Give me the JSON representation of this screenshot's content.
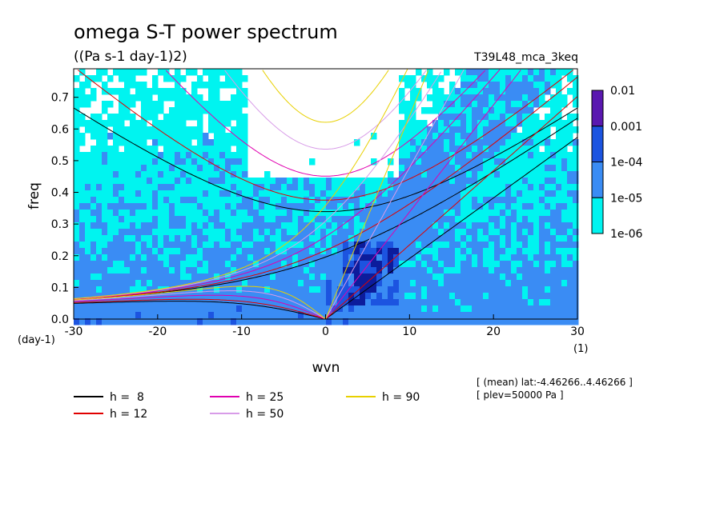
{
  "chart_data": {
    "type": "heatmap",
    "title": "omega S-T power spectrum",
    "subtitle": "((Pa s-1 day-1)2)",
    "run_label": "T39L48_mca_3keq",
    "xlabel": "wvn",
    "ylabel": "freq",
    "x_unit": "(1)",
    "y_unit": "(day-1)",
    "xlim": [
      -30,
      30
    ],
    "ylim": [
      0,
      0.79
    ],
    "xticks": [
      -30,
      -20,
      -10,
      0,
      10,
      20,
      30
    ],
    "yticks": [
      0.0,
      0.1,
      0.2,
      0.3,
      0.4,
      0.5,
      0.6,
      0.7
    ],
    "xtick_labels": [
      "-30",
      "-20",
      "-10",
      "0",
      "10",
      "20",
      "30"
    ],
    "ytick_labels": [
      "0.0",
      "0.1",
      "0.2",
      "0.3",
      "0.4",
      "0.5",
      "0.6",
      "0.7"
    ],
    "colorbar": {
      "levels": [
        "0.01",
        "0.001",
        "1e-04",
        "1e-05",
        "1e-06"
      ],
      "colors": [
        "#5a18b0",
        "#0c1c9c",
        "#1c54e0",
        "#3a8cf4",
        "#00f4f0"
      ]
    },
    "background_level_color": "#ffffff",
    "legend": [
      {
        "label": "h =  8",
        "h": 8,
        "color": "#000000"
      },
      {
        "label": "h = 12",
        "h": 12,
        "color": "#e00000"
      },
      {
        "label": "h = 25",
        "h": 25,
        "color": "#e000b0"
      },
      {
        "label": "h = 50",
        "h": 50,
        "color": "#d89ce8"
      },
      {
        "label": "h = 90",
        "h": 90,
        "color": "#e8d000"
      }
    ],
    "info_lines": [
      "[ (mean) lat:-4.46266..4.46266 ]",
      "[ plev=50000 Pa ]"
    ]
  }
}
